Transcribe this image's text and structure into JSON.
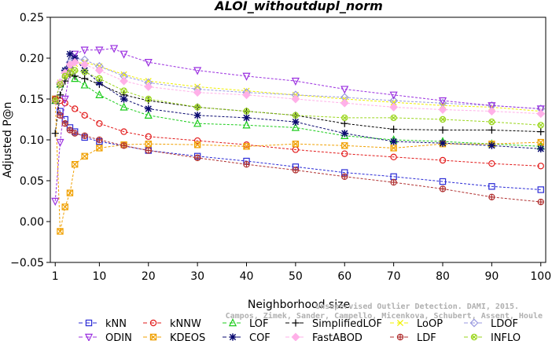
{
  "chart_data": {
    "type": "line",
    "title": "ALOI_withoutdupl_norm",
    "xlabel": "Neighborhood size",
    "ylabel": "Adjusted P@n",
    "xlim": [
      0,
      101
    ],
    "ylim": [
      -0.05,
      0.25
    ],
    "x_ticks": [
      1,
      10,
      20,
      30,
      40,
      50,
      60,
      70,
      80,
      90,
      100
    ],
    "y_ticks": [
      -0.05,
      0.0,
      0.05,
      0.1,
      0.15,
      0.2,
      0.25
    ],
    "y_tick_labels": [
      "−0.05",
      "0.00",
      "0.05",
      "0.10",
      "0.15",
      "0.20",
      "0.25"
    ],
    "grid": false,
    "legend_position": "bottom",
    "series": [
      {
        "name": "kNN",
        "color": "#2b2bd6",
        "marker": "square",
        "points": [
          [
            1,
            0.15
          ],
          [
            2,
            0.135
          ],
          [
            3,
            0.125
          ],
          [
            4,
            0.115
          ],
          [
            5,
            0.11
          ],
          [
            7,
            0.103
          ],
          [
            10,
            0.098
          ],
          [
            20,
            0.087
          ],
          [
            30,
            0.08
          ],
          [
            40,
            0.074
          ],
          [
            50,
            0.067
          ],
          [
            60,
            0.06
          ],
          [
            70,
            0.055
          ],
          [
            80,
            0.049
          ],
          [
            90,
            0.043
          ],
          [
            100,
            0.039
          ]
        ]
      },
      {
        "name": "kNNW",
        "color": "#e21a1a",
        "marker": "circle",
        "points": [
          [
            1,
            0.15
          ],
          [
            2,
            0.148
          ],
          [
            3,
            0.145
          ],
          [
            5,
            0.138
          ],
          [
            7,
            0.13
          ],
          [
            10,
            0.12
          ],
          [
            15,
            0.11
          ],
          [
            20,
            0.104
          ],
          [
            30,
            0.099
          ],
          [
            40,
            0.094
          ],
          [
            50,
            0.088
          ],
          [
            60,
            0.083
          ],
          [
            70,
            0.079
          ],
          [
            80,
            0.075
          ],
          [
            90,
            0.071
          ],
          [
            100,
            0.068
          ]
        ]
      },
      {
        "name": "LOF",
        "color": "#1ccc1c",
        "marker": "triangle-up",
        "points": [
          [
            1,
            0.148
          ],
          [
            2,
            0.168
          ],
          [
            3,
            0.185
          ],
          [
            4,
            0.192
          ],
          [
            5,
            0.175
          ],
          [
            7,
            0.167
          ],
          [
            10,
            0.155
          ],
          [
            15,
            0.14
          ],
          [
            20,
            0.13
          ],
          [
            30,
            0.12
          ],
          [
            40,
            0.118
          ],
          [
            50,
            0.115
          ],
          [
            60,
            0.105
          ],
          [
            70,
            0.1
          ],
          [
            80,
            0.098
          ],
          [
            90,
            0.095
          ],
          [
            100,
            0.092
          ]
        ]
      },
      {
        "name": "SimplifiedLOF",
        "color": "#000000",
        "marker": "plus",
        "points": [
          [
            1,
            0.108
          ],
          [
            2,
            0.155
          ],
          [
            3,
            0.172
          ],
          [
            4,
            0.18
          ],
          [
            5,
            0.178
          ],
          [
            7,
            0.175
          ],
          [
            10,
            0.168
          ],
          [
            15,
            0.155
          ],
          [
            20,
            0.148
          ],
          [
            30,
            0.14
          ],
          [
            40,
            0.135
          ],
          [
            50,
            0.13
          ],
          [
            60,
            0.12
          ],
          [
            70,
            0.113
          ],
          [
            80,
            0.112
          ],
          [
            90,
            0.112
          ],
          [
            100,
            0.11
          ]
        ]
      },
      {
        "name": "LoOP",
        "color": "#f0f000",
        "marker": "cross",
        "points": [
          [
            1,
            0.148
          ],
          [
            2,
            0.17
          ],
          [
            3,
            0.18
          ],
          [
            4,
            0.188
          ],
          [
            5,
            0.193
          ],
          [
            7,
            0.195
          ],
          [
            10,
            0.19
          ],
          [
            15,
            0.18
          ],
          [
            20,
            0.172
          ],
          [
            30,
            0.165
          ],
          [
            40,
            0.16
          ],
          [
            50,
            0.155
          ],
          [
            60,
            0.15
          ],
          [
            70,
            0.146
          ],
          [
            80,
            0.142
          ],
          [
            90,
            0.14
          ],
          [
            100,
            0.135
          ]
        ]
      },
      {
        "name": "LDOF",
        "color": "#9a9ae0",
        "marker": "diamond",
        "points": [
          [
            1,
            0.148
          ],
          [
            2,
            0.17
          ],
          [
            3,
            0.185
          ],
          [
            4,
            0.195
          ],
          [
            5,
            0.2
          ],
          [
            7,
            0.198
          ],
          [
            10,
            0.19
          ],
          [
            15,
            0.178
          ],
          [
            20,
            0.17
          ],
          [
            30,
            0.162
          ],
          [
            40,
            0.158
          ],
          [
            50,
            0.155
          ],
          [
            60,
            0.152
          ],
          [
            70,
            0.148
          ],
          [
            80,
            0.145
          ],
          [
            90,
            0.142
          ],
          [
            100,
            0.138
          ]
        ]
      },
      {
        "name": "ODIN",
        "color": "#9b30e0",
        "marker": "triangle-down",
        "points": [
          [
            1,
            0.025
          ],
          [
            2,
            0.097
          ],
          [
            3,
            0.15
          ],
          [
            4,
            0.185
          ],
          [
            5,
            0.205
          ],
          [
            7,
            0.21
          ],
          [
            10,
            0.21
          ],
          [
            13,
            0.212
          ],
          [
            15,
            0.205
          ],
          [
            20,
            0.195
          ],
          [
            30,
            0.185
          ],
          [
            40,
            0.178
          ],
          [
            50,
            0.172
          ],
          [
            60,
            0.162
          ],
          [
            70,
            0.155
          ],
          [
            80,
            0.148
          ],
          [
            90,
            0.142
          ],
          [
            100,
            0.138
          ]
        ]
      },
      {
        "name": "KDEOS",
        "color": "#f0a000",
        "marker": "square-x",
        "points": [
          [
            1,
            0.15
          ],
          [
            2,
            -0.012
          ],
          [
            3,
            0.018
          ],
          [
            4,
            0.035
          ],
          [
            5,
            0.07
          ],
          [
            7,
            0.08
          ],
          [
            10,
            0.09
          ],
          [
            15,
            0.094
          ],
          [
            20,
            0.095
          ],
          [
            30,
            0.094
          ],
          [
            40,
            0.092
          ],
          [
            50,
            0.095
          ],
          [
            60,
            0.093
          ],
          [
            70,
            0.09
          ],
          [
            80,
            0.095
          ],
          [
            90,
            0.095
          ],
          [
            100,
            0.097
          ]
        ]
      },
      {
        "name": "COF",
        "color": "#0a0a70",
        "marker": "asterisk",
        "points": [
          [
            1,
            0.148
          ],
          [
            2,
            0.168
          ],
          [
            3,
            0.185
          ],
          [
            4,
            0.205
          ],
          [
            5,
            0.2
          ],
          [
            7,
            0.185
          ],
          [
            10,
            0.17
          ],
          [
            15,
            0.15
          ],
          [
            20,
            0.138
          ],
          [
            30,
            0.13
          ],
          [
            40,
            0.127
          ],
          [
            50,
            0.122
          ],
          [
            60,
            0.108
          ],
          [
            70,
            0.098
          ],
          [
            80,
            0.096
          ],
          [
            90,
            0.093
          ],
          [
            100,
            0.089
          ]
        ]
      },
      {
        "name": "FastABOD",
        "color": "#ffb0e8",
        "marker": "diamond-filled",
        "points": [
          [
            1,
            0.148
          ],
          [
            2,
            0.17
          ],
          [
            3,
            0.182
          ],
          [
            4,
            0.192
          ],
          [
            5,
            0.195
          ],
          [
            7,
            0.192
          ],
          [
            10,
            0.185
          ],
          [
            15,
            0.172
          ],
          [
            20,
            0.165
          ],
          [
            30,
            0.158
          ],
          [
            40,
            0.155
          ],
          [
            50,
            0.15
          ],
          [
            60,
            0.145
          ],
          [
            70,
            0.14
          ],
          [
            80,
            0.137
          ],
          [
            90,
            0.135
          ],
          [
            100,
            0.132
          ]
        ]
      },
      {
        "name": "LDF",
        "color": "#b03030",
        "marker": "circle-plus",
        "points": [
          [
            1,
            0.15
          ],
          [
            2,
            0.13
          ],
          [
            3,
            0.12
          ],
          [
            4,
            0.112
          ],
          [
            5,
            0.108
          ],
          [
            7,
            0.105
          ],
          [
            10,
            0.1
          ],
          [
            15,
            0.093
          ],
          [
            20,
            0.087
          ],
          [
            30,
            0.078
          ],
          [
            40,
            0.07
          ],
          [
            50,
            0.063
          ],
          [
            60,
            0.055
          ],
          [
            70,
            0.048
          ],
          [
            80,
            0.04
          ],
          [
            90,
            0.03
          ],
          [
            100,
            0.024
          ]
        ]
      },
      {
        "name": "INFLO",
        "color": "#9ad61c",
        "marker": "circle-x",
        "points": [
          [
            1,
            0.148
          ],
          [
            2,
            0.168
          ],
          [
            3,
            0.178
          ],
          [
            4,
            0.182
          ],
          [
            5,
            0.185
          ],
          [
            7,
            0.183
          ],
          [
            10,
            0.175
          ],
          [
            15,
            0.16
          ],
          [
            20,
            0.15
          ],
          [
            30,
            0.14
          ],
          [
            40,
            0.135
          ],
          [
            50,
            0.13
          ],
          [
            60,
            0.127
          ],
          [
            70,
            0.127
          ],
          [
            80,
            0.125
          ],
          [
            90,
            0.122
          ],
          [
            100,
            0.118
          ]
        ]
      }
    ],
    "legend_order": [
      "kNN",
      "kNNW",
      "LOF",
      "SimplifiedLOF",
      "LoOP",
      "LDOF",
      "ODIN",
      "KDEOS",
      "COF",
      "FastABOD",
      "LDF",
      "INFLO"
    ],
    "watermark": [
      "Campos, Zimek, Sander, Campello, Micenkova, Schubert, Assent, Houle",
      "Unsupervised Outlier Detection. DAMI, 2015."
    ]
  }
}
